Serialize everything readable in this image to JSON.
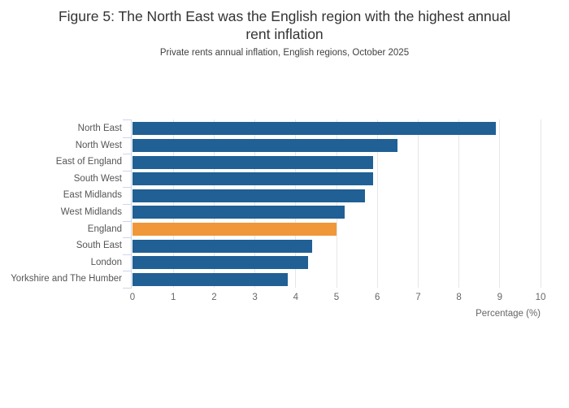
{
  "figure": {
    "title": "Figure 5: The North East was the English region with the highest annual rent inflation",
    "title_line1": "Figure 5: The North East was the English region with the highest annual",
    "title_line2": "rent inflation",
    "subtitle": "Private rents annual inflation, English regions, October 2025"
  },
  "chart_data": {
    "type": "bar",
    "orientation": "horizontal",
    "title": "Figure 5: The North East was the English region with the highest annual rent inflation",
    "subtitle": "Private rents annual inflation, English regions, October 2025",
    "categories": [
      "North East",
      "North West",
      "East of England",
      "South West",
      "East Midlands",
      "West Midlands",
      "England",
      "South East",
      "London",
      "Yorkshire and The Humber"
    ],
    "values": [
      8.9,
      6.5,
      5.9,
      5.9,
      5.7,
      5.2,
      5.0,
      4.4,
      4.3,
      3.8
    ],
    "highlight_category": "England",
    "xlabel": "Percentage (%)",
    "ylabel": "",
    "xlim": [
      0,
      10
    ],
    "x_ticks": [
      0,
      1,
      2,
      3,
      4,
      5,
      6,
      7,
      8,
      9,
      10
    ],
    "grid": true,
    "legend": "none",
    "colors": {
      "bar": "#206095",
      "highlight": "#F0973A",
      "gridline": "#E6E6E6",
      "axis": "#CCD6EB",
      "title_text": "#333333",
      "subtitle_text": "#414042",
      "label_text": "#666666"
    }
  }
}
